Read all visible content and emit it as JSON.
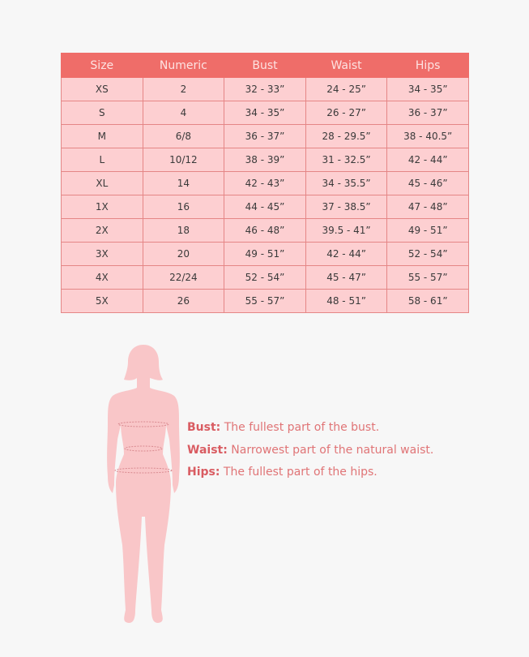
{
  "table": {
    "headers": [
      "Size",
      "Numeric",
      "Bust",
      "Waist",
      "Hips"
    ],
    "rows": [
      [
        "XS",
        "2",
        "32  -  33”",
        "24 - 25”",
        "34 - 35”"
      ],
      [
        "S",
        "4",
        "34 - 35”",
        "26 - 27”",
        "36 - 37”"
      ],
      [
        "M",
        "6/8",
        "36 - 37”",
        "28 - 29.5”",
        "38 - 40.5”"
      ],
      [
        "L",
        "10/12",
        "38 - 39”",
        "31 - 32.5”",
        "42 - 44”"
      ],
      [
        "XL",
        "14",
        "42 - 43”",
        "34 - 35.5”",
        "45 - 46”"
      ],
      [
        "1X",
        "16",
        "44 - 45”",
        "37 - 38.5”",
        "47 - 48”"
      ],
      [
        "2X",
        "18",
        "46 - 48”",
        "39.5 - 41”",
        "49 - 51”"
      ],
      [
        "3X",
        "20",
        "49 - 51”",
        "42 - 44”",
        "52 - 54”"
      ],
      [
        "4X",
        "22/24",
        "52 - 54”",
        "45 - 47”",
        "55 - 57”"
      ],
      [
        "5X",
        "26",
        "55 - 57”",
        "48 - 51”",
        "58 - 61”"
      ]
    ]
  },
  "legend": [
    {
      "term": "Bust:",
      "text": " The fullest part of the bust."
    },
    {
      "term": "Waist:",
      "text": " Narrowest part of the natural waist."
    },
    {
      "term": "Hips:",
      "text": " The fullest part of the hips."
    }
  ],
  "colors": {
    "header": "#ef6d69",
    "cell": "#fdcfd1",
    "figure": "#f9c6c8",
    "accent": "#d95c62"
  }
}
